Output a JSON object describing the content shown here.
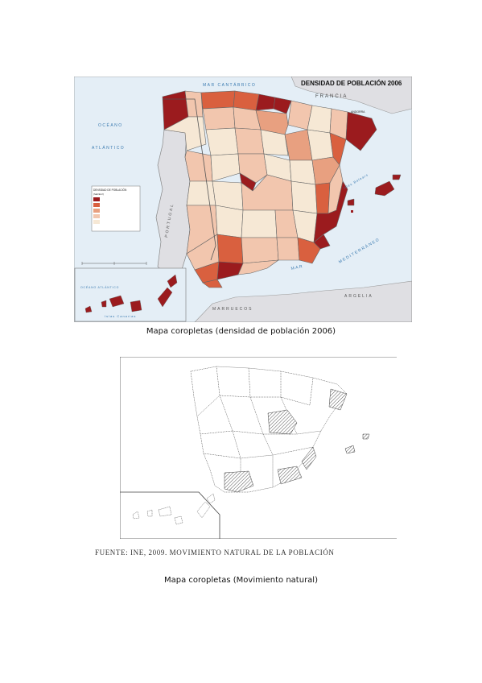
{
  "map1": {
    "title": "DENSIDAD DE POBLACIÓN 2006",
    "sea_labels": {
      "cantabrico": "MAR CANTÁBRICO",
      "oceano": "OCÉANO",
      "atlantico": "ATLÁNTICO",
      "mediterraneo": "MEDITERRÁNEO",
      "mar": "MAR",
      "baleares": "Illes Balears",
      "canarias_oceano": "OCÉANO ATLÁNTICO",
      "canarias": "Islas Canarias"
    },
    "country_labels": {
      "francia": "FRANCIA",
      "andorra": "ANDORRA",
      "portugal": "PORTUGAL",
      "marruecos": "MARRUECOS",
      "argelia": "ARGELIA"
    },
    "legend": {
      "title": "DENSIDAD DE POBLACIÓN",
      "subtitle": "(hab/km²)",
      "colors": [
        "#9b1b1e",
        "#d9603f",
        "#e8a080",
        "#f2c6ae",
        "#f6e8d5"
      ]
    },
    "colors": {
      "sea": "#e4eef6",
      "foreign": "#dfdfe3",
      "border": "#555555",
      "dark": "#9b1b1e",
      "medium": "#d9603f",
      "light": "#e8a080",
      "pale": "#f2c6ae",
      "lowest": "#f6e8d5"
    }
  },
  "caption1": "Mapa coropletas (densidad de población 2006)",
  "map2": {
    "source": "FUENTE: INE, 2009. MOVIMIENTO NATURAL DE LA POBLACIÓN",
    "colors": {
      "hatch": "#555555",
      "outline": "#444444"
    }
  },
  "caption2": "Mapa coropletas (Movimiento natural)"
}
